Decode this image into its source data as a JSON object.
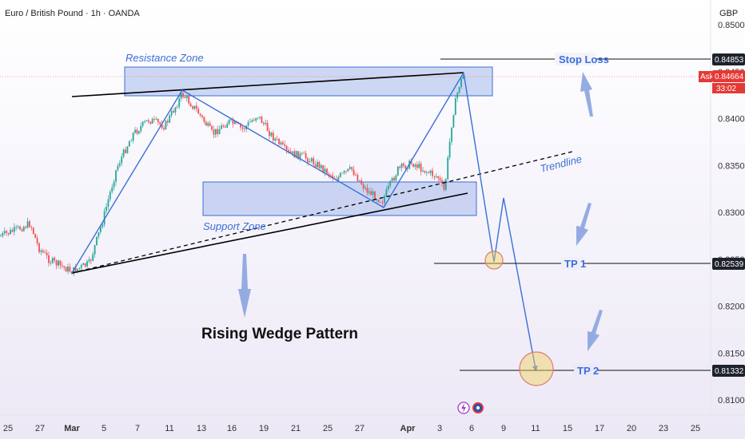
{
  "header": {
    "symbol_title": "Euro / British Pound · 1h · OANDA",
    "currency": "GBP"
  },
  "chart_data": {
    "type": "candlestick",
    "title": "Rising Wedge Pattern",
    "ylim": [
      0.808,
      0.8525
    ],
    "y_ticks": [
      "0.85000",
      "0.84500",
      "0.84000",
      "0.83500",
      "0.83000",
      "0.82500",
      "0.82000",
      "0.81500",
      "0.81000"
    ],
    "x_ticks": [
      "25",
      "27",
      "Mar",
      "5",
      "7",
      "11",
      "13",
      "16",
      "19",
      "21",
      "25",
      "27",
      "Apr",
      "3",
      "6",
      "9",
      "11",
      "15",
      "17",
      "20",
      "23",
      "25"
    ],
    "price_labels": {
      "stop_loss": "0.84853",
      "ask_label": "Ask",
      "ask_price": "0.84664",
      "countdown": "33:02",
      "tp1": "0.82539",
      "tp2": "0.81332"
    },
    "annotations": {
      "resistance_zone": "Resistance Zone",
      "support_zone": "Support Zone",
      "trendline": "Trendline",
      "stop_loss": "Stop Loss",
      "tp1": "TP 1",
      "tp2": "TP 2"
    },
    "levels": {
      "stop_loss": 0.84853,
      "ask": 0.84664,
      "tp1": 0.82539,
      "tp2": 0.81332,
      "resistance_zone": [
        0.8441,
        0.8476
      ],
      "support_zone": [
        0.8311,
        0.8348
      ]
    },
    "colors": {
      "up": "#26a69a",
      "down": "#ef5350",
      "zone": "#3a6fd8",
      "ask": "#e53935",
      "target_circle": "#f2d35b"
    }
  }
}
